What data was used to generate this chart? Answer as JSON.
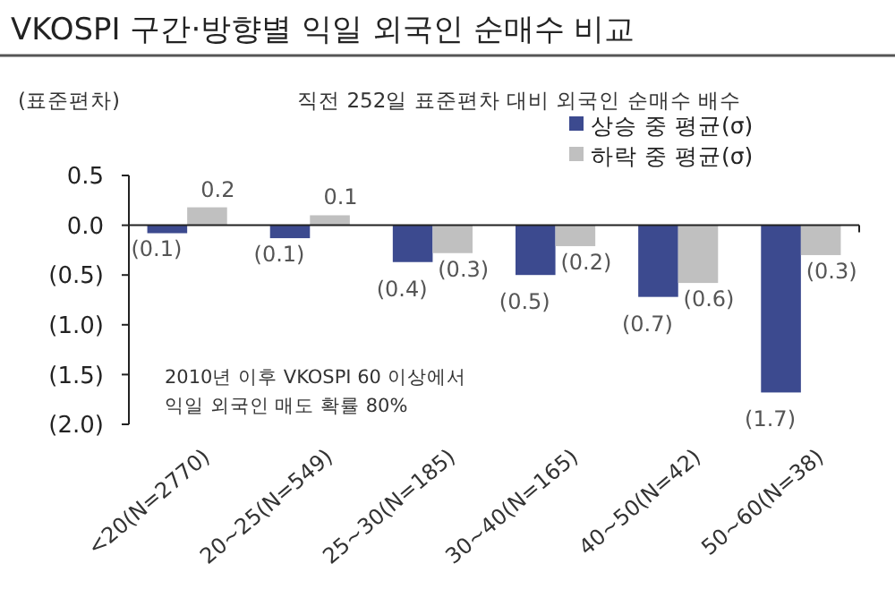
{
  "chart_data": {
    "type": "bar",
    "title": "VKOSPI 구간·방향별 익일 외국인 순매수 비교",
    "subtitle": "직전 252일 표준편차 대비 외국인 순매수 배수",
    "ylabel": "(표준편차)",
    "categories": [
      "<20(N=2770)",
      "20~25(N=549)",
      "25~30(N=185)",
      "30~40(N=165)",
      "40~50(N=42)",
      "50~60(N=38)"
    ],
    "series": [
      {
        "name": "상승 중 평균(σ)",
        "color": "#3c4a8f",
        "values": [
          -0.08,
          -0.13,
          -0.37,
          -0.5,
          -0.72,
          -1.68
        ],
        "value_labels": [
          "(0.1)",
          "(0.1)",
          "(0.4)",
          "(0.5)",
          "(0.7)",
          "(1.7)"
        ]
      },
      {
        "name": "하락 중 평균(σ)",
        "color": "#c0c0c0",
        "values": [
          0.18,
          0.1,
          -0.28,
          -0.21,
          -0.58,
          -0.3
        ],
        "value_labels": [
          "0.2",
          "0.1",
          "(0.3)",
          "(0.2)",
          "(0.6)",
          "(0.3)"
        ]
      }
    ],
    "ylim": [
      -2,
      0.5
    ],
    "yticks": [
      0.5,
      {
        "value": 0,
        "label": "0.0"
      },
      {
        "value": -0.5,
        "label": "(0.5)"
      },
      {
        "value": -1,
        "label": "(1.0)"
      },
      {
        "value": -1.5,
        "label": "(1.5)"
      },
      {
        "value": -2,
        "label": "(2.0)"
      }
    ],
    "legend": "top right",
    "annotations": [
      "2010년 이후 VKOSPI 60 이상에서\n익일 외국인 매도 확률 80%"
    ]
  }
}
